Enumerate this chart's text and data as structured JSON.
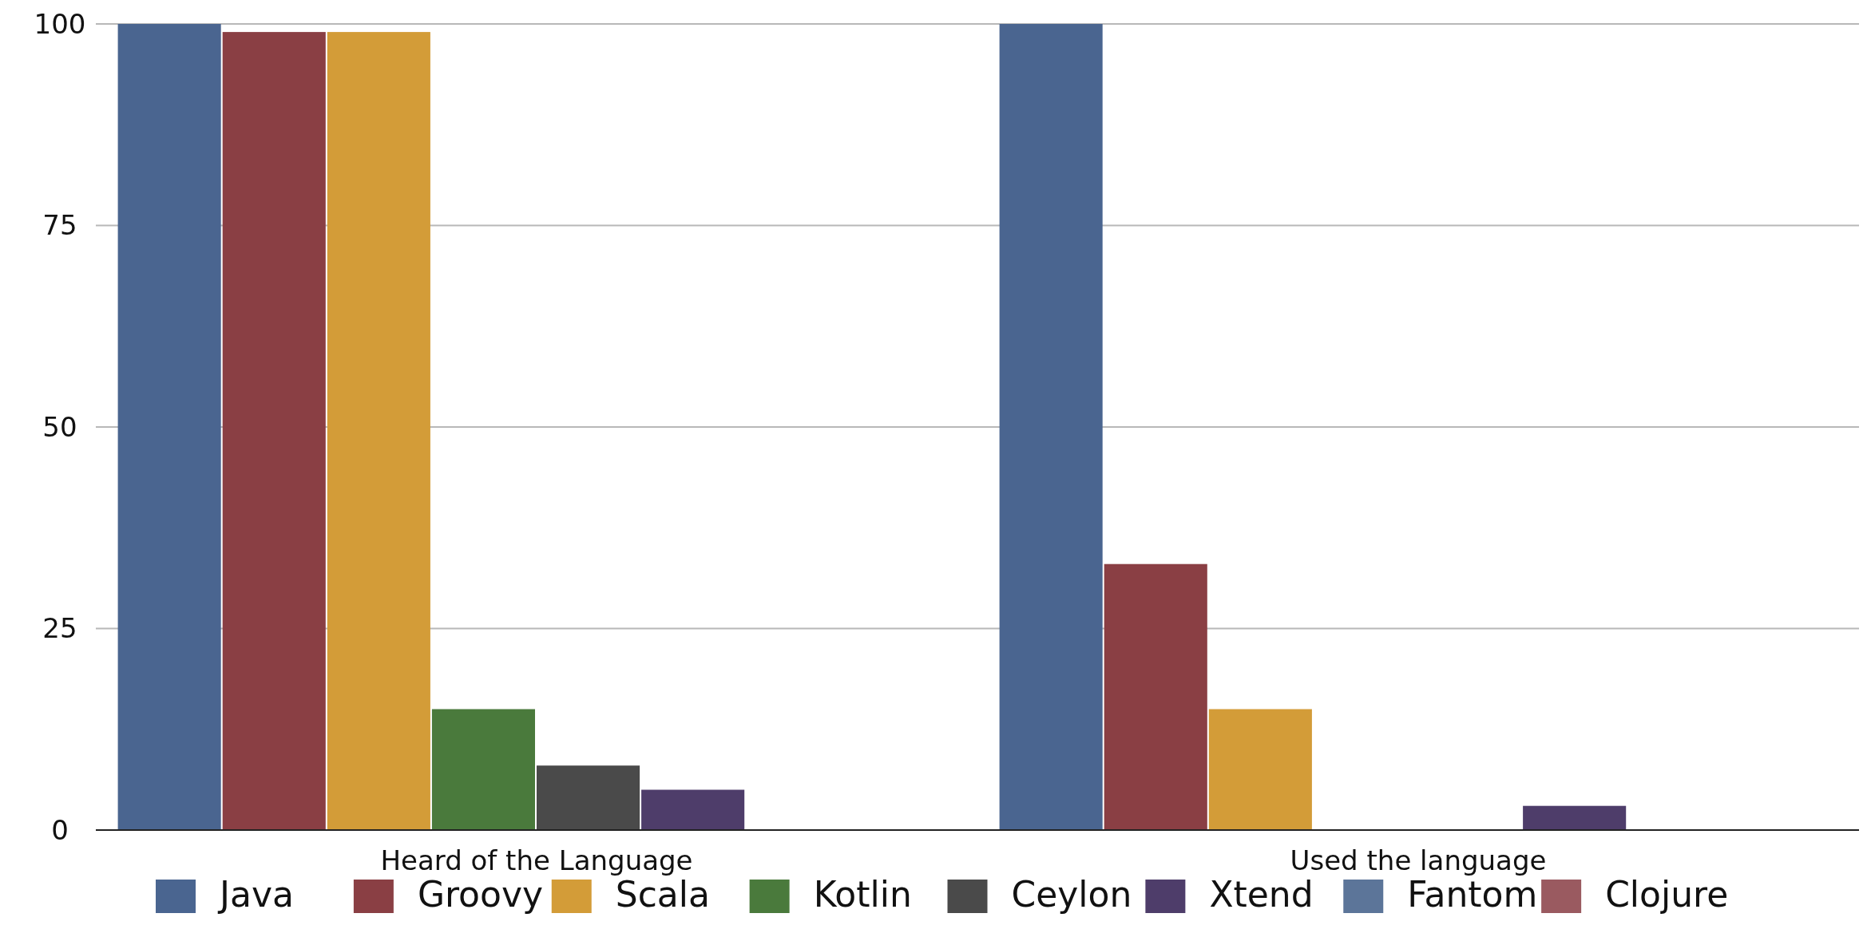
{
  "chart_data": {
    "type": "bar",
    "categories": [
      "Heard of the Language",
      "Used the language"
    ],
    "series": [
      {
        "name": "Java",
        "color": "#4a6590",
        "values": [
          100,
          100
        ]
      },
      {
        "name": "Groovy",
        "color": "#8a3f44",
        "values": [
          99,
          33
        ]
      },
      {
        "name": "Scala",
        "color": "#d39c38",
        "values": [
          99,
          15
        ]
      },
      {
        "name": "Kotlin",
        "color": "#4a7a3c",
        "values": [
          15,
          0
        ]
      },
      {
        "name": "Ceylon",
        "color": "#4a4a4a",
        "values": [
          8,
          0
        ]
      },
      {
        "name": "Xtend",
        "color": "#4e3d6a",
        "values": [
          5,
          3
        ]
      },
      {
        "name": "Fantom",
        "color": "#5c7599",
        "values": [
          0,
          0
        ]
      },
      {
        "name": "Clojure",
        "color": "#9a5a60",
        "values": [
          0,
          0
        ]
      }
    ],
    "ylim": [
      0,
      100
    ],
    "yticks": [
      0,
      25,
      50,
      75,
      100
    ],
    "grid": "y",
    "legend": "bottom"
  }
}
